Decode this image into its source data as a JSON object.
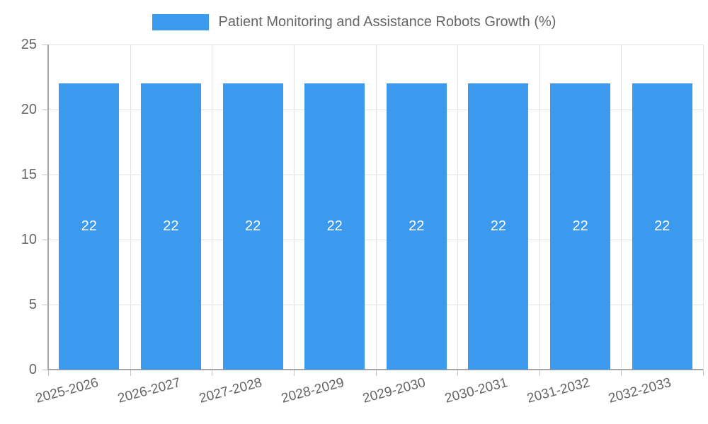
{
  "chart_data": {
    "type": "bar",
    "title": "Patient Monitoring and Assistance Robots Growth (%)",
    "categories": [
      "2025-2026",
      "2026-2027",
      "2027-2028",
      "2028-2029",
      "2029-2030",
      "2030-2031",
      "2031-2032",
      "2032-2033"
    ],
    "series": [
      {
        "name": "Patient Monitoring and Assistance Robots Growth (%)",
        "values": [
          22,
          22,
          22,
          22,
          22,
          22,
          22,
          22
        ]
      }
    ],
    "bar_value_labels": [
      "22",
      "22",
      "22",
      "22",
      "22",
      "22",
      "22",
      "22"
    ],
    "xlabel": "",
    "ylabel": "",
    "ylim": [
      0,
      25
    ],
    "y_ticks": [
      0,
      5,
      10,
      15,
      20,
      25
    ],
    "grid": true,
    "legend_position": "top-center",
    "colors": {
      "bar": "#3B99EE",
      "grid": "#e3e3e3",
      "axis": "#a6a6a6",
      "tickmark": "#c4c4c4",
      "text": "#666666",
      "value_label": "#ffffff"
    }
  }
}
